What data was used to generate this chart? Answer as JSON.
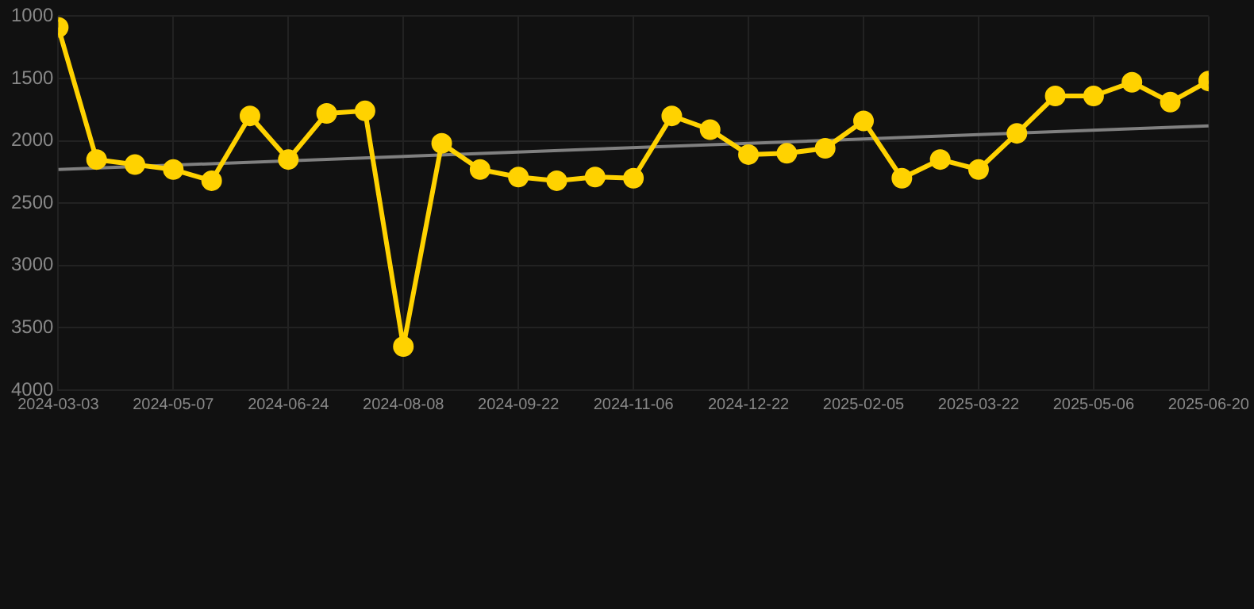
{
  "chart_data": {
    "type": "line",
    "categories": [
      "2024-03-03",
      null,
      null,
      "2024-05-07",
      null,
      null,
      "2024-06-24",
      null,
      null,
      "2024-08-08",
      null,
      null,
      "2024-09-22",
      null,
      null,
      "2024-11-06",
      null,
      null,
      "2024-12-22",
      null,
      null,
      "2025-02-05",
      null,
      null,
      "2025-03-22",
      null,
      null,
      "2025-05-06",
      null,
      null,
      "2025-06-20"
    ],
    "series": [
      {
        "color": "#ffd200",
        "values": [
          1090,
          2150,
          2190,
          2230,
          2320,
          1800,
          2150,
          1780,
          1760,
          3650,
          2020,
          2230,
          2290,
          2320,
          2290,
          2300,
          1800,
          1910,
          2110,
          2100,
          2060,
          1840,
          2300,
          2150,
          2230,
          1940,
          1640,
          1640,
          1530,
          1690,
          1520
        ]
      },
      {
        "type": "line",
        "color": "#808080",
        "marker": "none",
        "values": [
          2230,
          null,
          null,
          null,
          null,
          null,
          null,
          null,
          null,
          null,
          null,
          null,
          null,
          null,
          null,
          null,
          null,
          null,
          null,
          null,
          null,
          null,
          null,
          null,
          null,
          null,
          null,
          null,
          null,
          null,
          1880
        ]
      }
    ],
    "ylim": [
      4000,
      1000
    ],
    "yticks": [
      1000,
      1500,
      2000,
      2500,
      3000,
      3500,
      4000
    ],
    "grid": true,
    "legend": false,
    "marker": "circle",
    "line_style": "solid"
  }
}
